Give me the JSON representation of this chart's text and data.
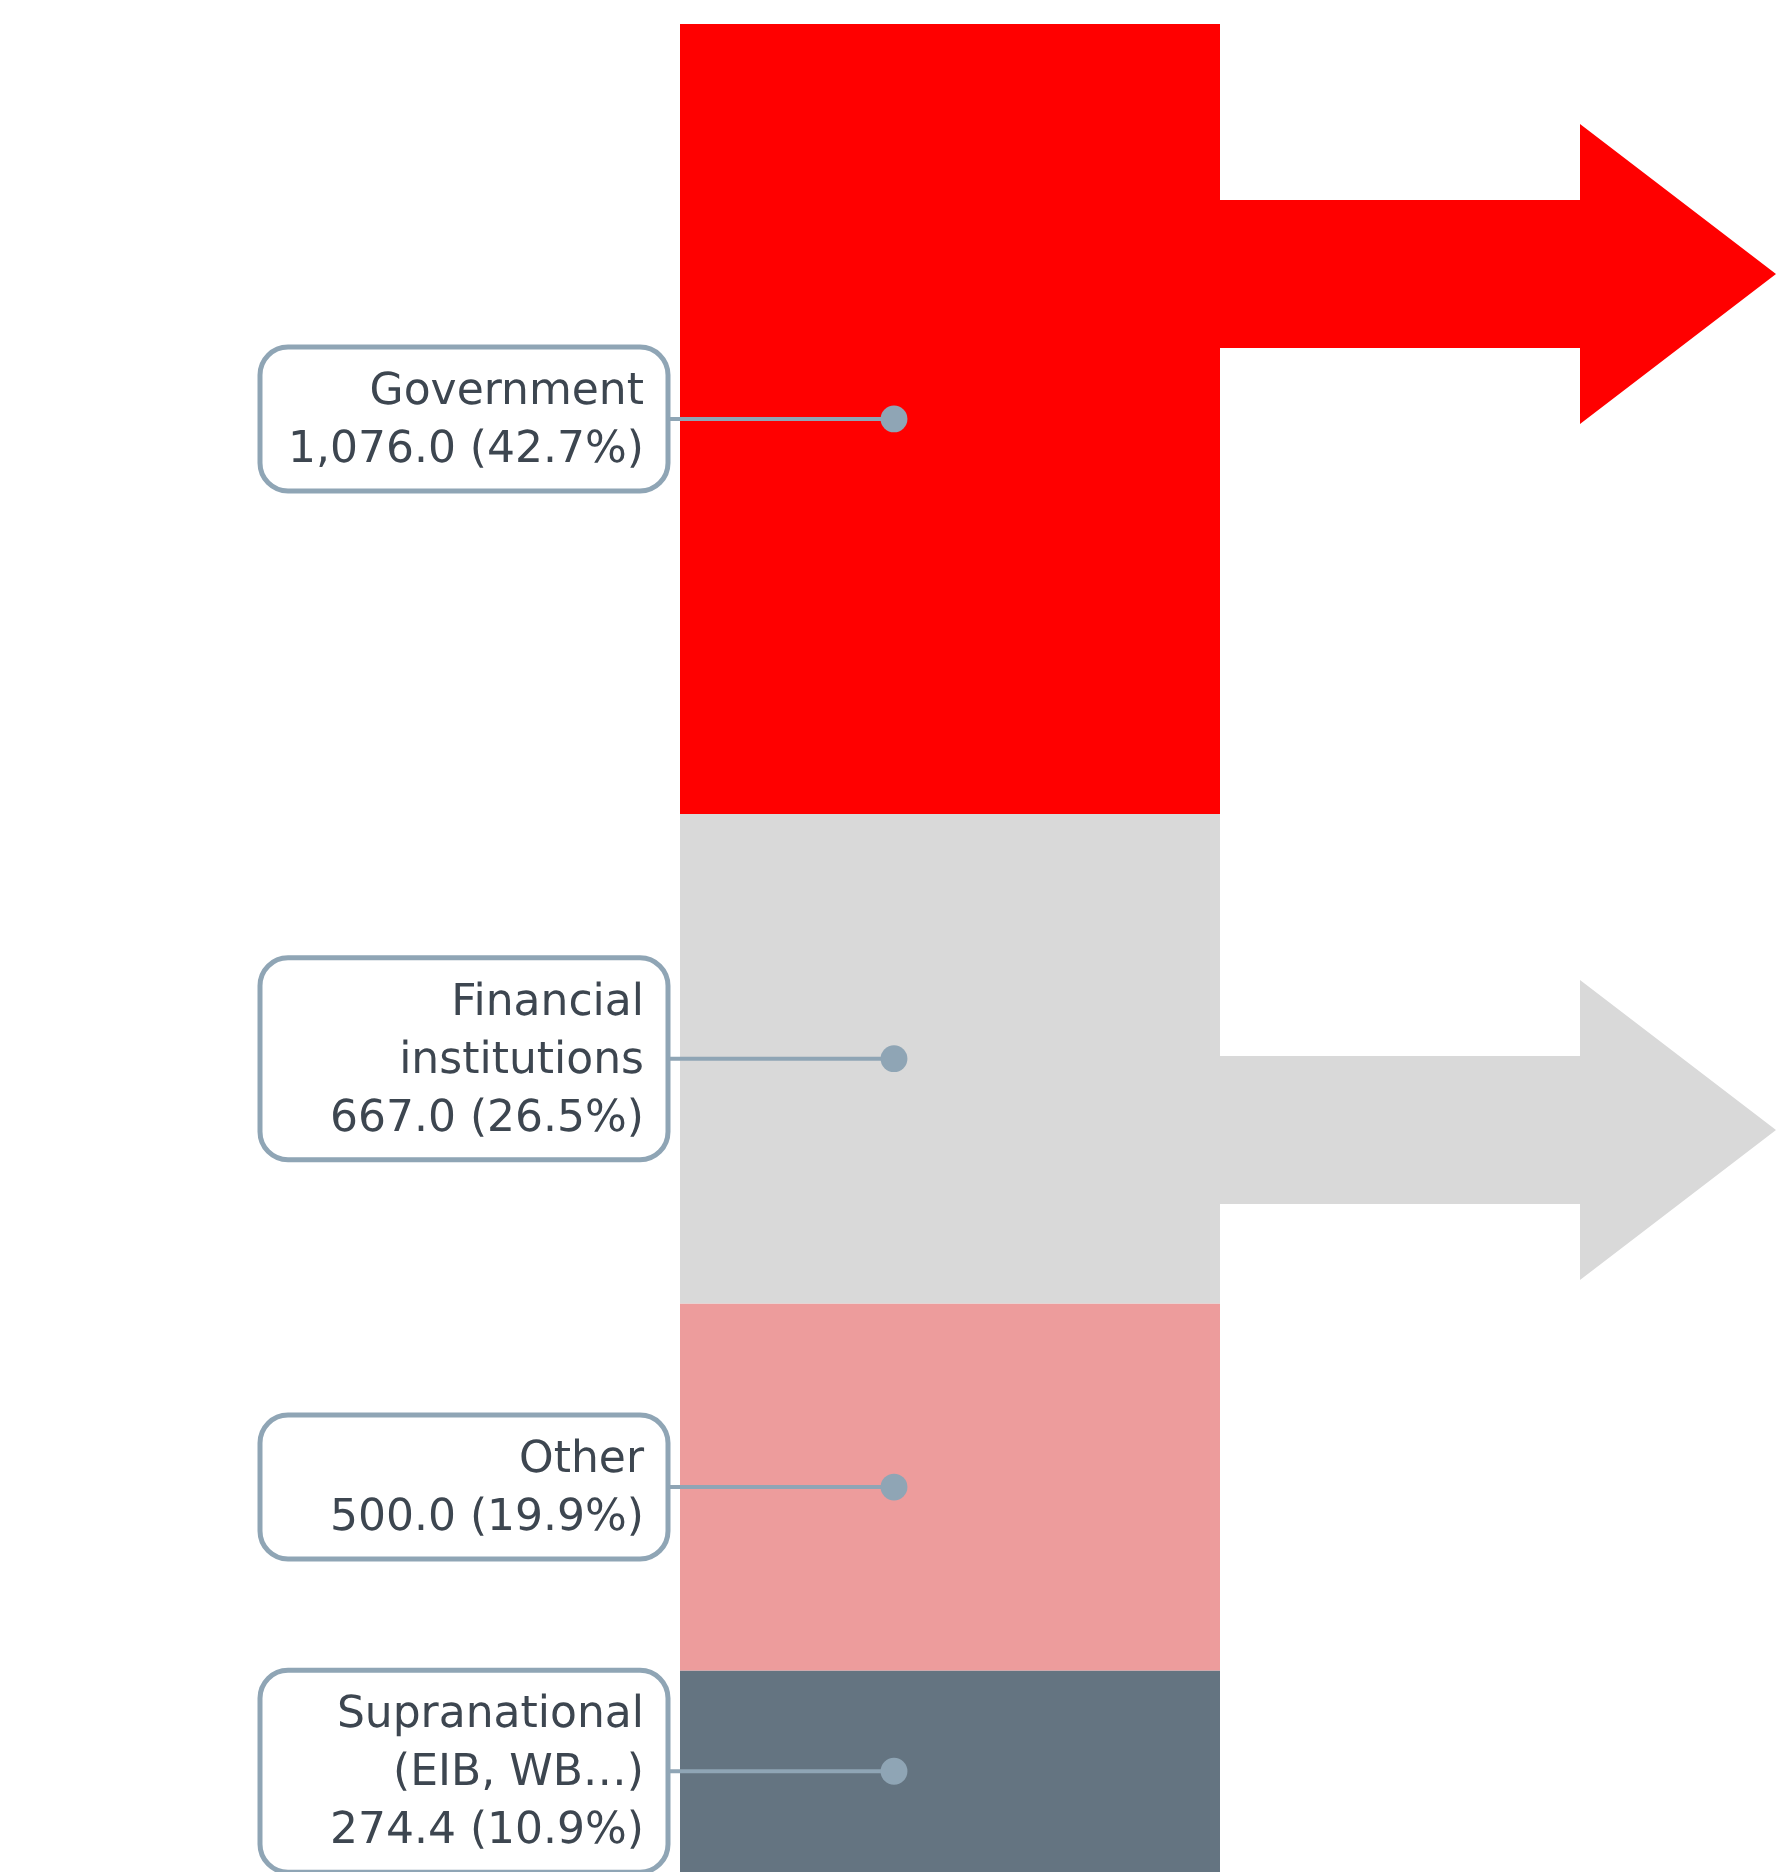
{
  "chart_data": {
    "type": "bar",
    "stacked": true,
    "categories": [
      null
    ],
    "series": [
      {
        "name": "Supranational (EIB, WB…)",
        "color": "#647481",
        "values": [
          274.4
        ],
        "value_labels": [
          "274.4 (10.9%)"
        ]
      },
      {
        "name": "Other",
        "color": "#ed9c9c",
        "values": [
          500.0
        ],
        "value_labels": [
          "500.0 (19.9%)"
        ]
      },
      {
        "name": "Financial institutions",
        "color": "#d9d9d9",
        "values": [
          667.0
        ],
        "value_labels": [
          "667.0 (26.5%)"
        ]
      },
      {
        "name": "Government",
        "color": "#ff0000",
        "values": [
          1076.0
        ],
        "value_labels": [
          "1,076.0 (42.7%)"
        ]
      }
    ]
  }
}
